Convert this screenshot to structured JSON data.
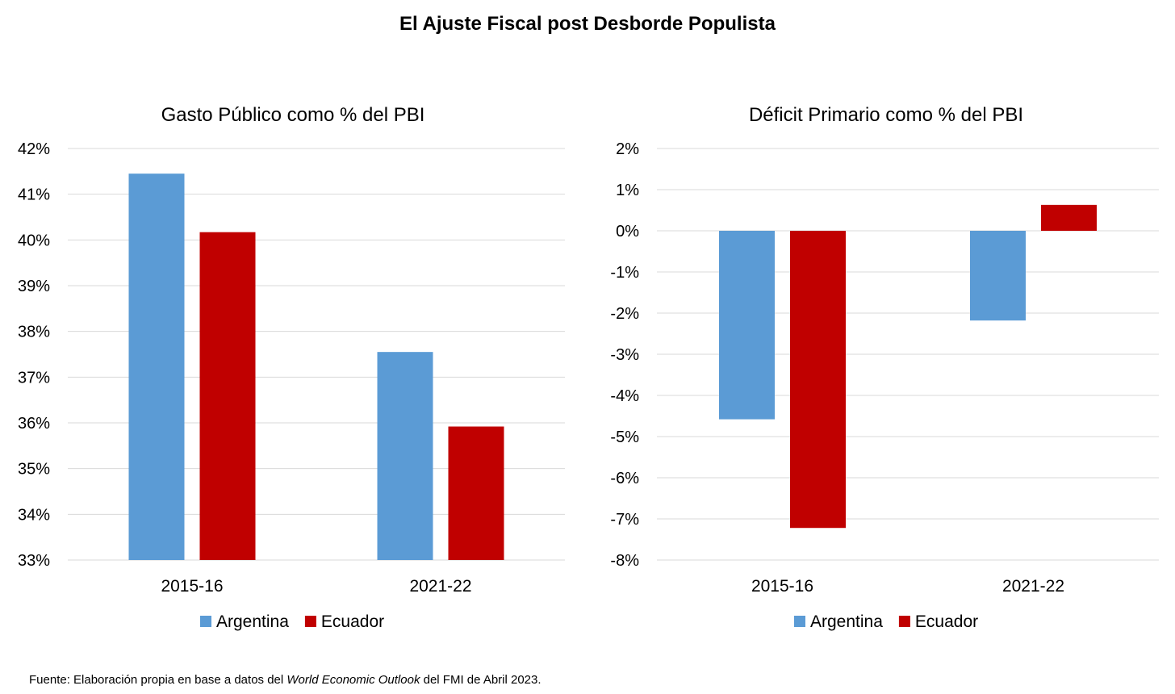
{
  "page": {
    "title": "El Ajuste Fiscal post Desborde Populista",
    "source": {
      "prefix": "Fuente: Elaboración propia en base a datos del ",
      "italic": "World Economic Outlook",
      "suffix": " del FMI de Abril 2023."
    }
  },
  "colors": {
    "Argentina": "#5b9bd5",
    "Ecuador": "#c00000",
    "grid": "#d9d9d9"
  },
  "chart_data": [
    {
      "type": "bar",
      "title": "Gasto Público como % del PBI",
      "categories": [
        "2015-16",
        "2021-22"
      ],
      "series": [
        {
          "name": "Argentina",
          "values": [
            41.45,
            37.55
          ]
        },
        {
          "name": "Ecuador",
          "values": [
            40.17,
            35.92
          ]
        }
      ],
      "ylim": [
        33,
        42
      ],
      "yticks": [
        33,
        34,
        35,
        36,
        37,
        38,
        39,
        40,
        41,
        42
      ],
      "ytick_labels": [
        "33%",
        "34%",
        "35%",
        "36%",
        "37%",
        "38%",
        "39%",
        "40%",
        "41%",
        "42%"
      ],
      "grid": true,
      "legend": "bottom"
    },
    {
      "type": "bar",
      "title": "Déficit Primario como % del PBI",
      "categories": [
        "2015-16",
        "2021-22"
      ],
      "series": [
        {
          "name": "Argentina",
          "values": [
            -4.58,
            -2.18
          ]
        },
        {
          "name": "Ecuador",
          "values": [
            -7.22,
            0.63
          ]
        }
      ],
      "ylim": [
        -8,
        2
      ],
      "yticks": [
        -8,
        -7,
        -6,
        -5,
        -4,
        -3,
        -2,
        -1,
        0,
        1,
        2
      ],
      "ytick_labels": [
        "-8%",
        "-7%",
        "-6%",
        "-5%",
        "-4%",
        "-3%",
        "-2%",
        "-1%",
        "0%",
        "1%",
        "2%"
      ],
      "grid": true,
      "legend": "bottom"
    }
  ]
}
